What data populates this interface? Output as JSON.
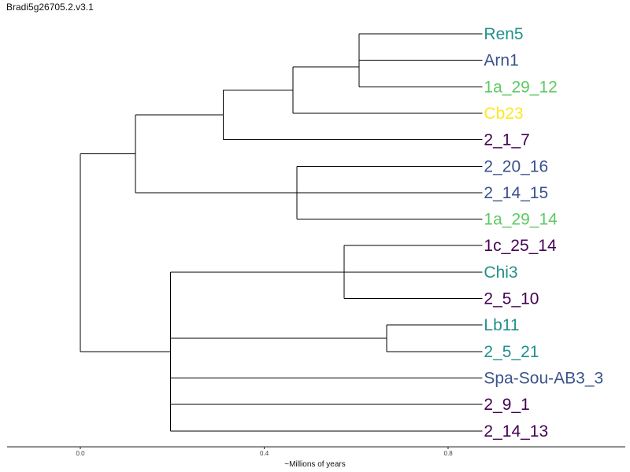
{
  "title": "Bradi5g26705.2.v3.1",
  "colors": {
    "dark_purple": "#440154",
    "blue": "#3b528b",
    "teal": "#21918c",
    "green": "#5ec962",
    "yellow": "#fde725"
  },
  "tree": {
    "axis_label": "~Millions of years",
    "ticks": [
      0.0,
      0.4,
      0.8
    ],
    "tick_labels": [
      "0.0",
      "0.4",
      "0.8"
    ],
    "leaves": [
      {
        "name": "Ren5",
        "color": "#21918c"
      },
      {
        "name": "Arn1",
        "color": "#3b528b"
      },
      {
        "name": "1a_29_12",
        "color": "#5ec962"
      },
      {
        "name": "Cb23",
        "color": "#fde725"
      },
      {
        "name": "2_1_7",
        "color": "#440154"
      },
      {
        "name": "2_20_16",
        "color": "#3b528b"
      },
      {
        "name": "2_14_15",
        "color": "#3b528b"
      },
      {
        "name": "1a_29_14",
        "color": "#5ec962"
      },
      {
        "name": "1c_25_14",
        "color": "#440154"
      },
      {
        "name": "Chi3",
        "color": "#21918c"
      },
      {
        "name": "2_5_10",
        "color": "#440154"
      },
      {
        "name": "Lb11",
        "color": "#21918c"
      },
      {
        "name": "2_5_21",
        "color": "#21918c"
      },
      {
        "name": "Spa-Sou-AB3_3",
        "color": "#3b528b"
      },
      {
        "name": "2_9_1",
        "color": "#440154"
      },
      {
        "name": "2_14_13",
        "color": "#440154"
      }
    ],
    "nodes": [
      {
        "id": "n_ren_arn",
        "x": 0.606,
        "children": [
          "Ren5",
          "Arn1"
        ]
      },
      {
        "id": "n_ra_1a",
        "x": 0.606,
        "children": [
          "n_ren_arn",
          "1a_29_12"
        ]
      },
      {
        "id": "n_cb",
        "x": 0.462,
        "children": [
          "n_ra_1a",
          "Cb23"
        ]
      },
      {
        "id": "n_217",
        "x": 0.311,
        "children": [
          "n_cb",
          "2_1_7"
        ]
      },
      {
        "id": "n_2016",
        "x": 0.471,
        "children": [
          "2_20_16",
          "2_14_15",
          "1a_29_14"
        ]
      },
      {
        "id": "n_upper",
        "x": 0.12,
        "children": [
          "n_217",
          "n_2016"
        ]
      },
      {
        "id": "n_1c",
        "x": 0.574,
        "children": [
          "1c_25_14",
          "Chi3",
          "2_5_10"
        ]
      },
      {
        "id": "n_lb",
        "x": 0.666,
        "children": [
          "Lb11",
          "2_5_21"
        ]
      },
      {
        "id": "n_lower",
        "x": 0.196,
        "children": [
          "n_1c",
          "n_lb",
          "Spa-Sou-AB3_3",
          "2_9_1",
          "2_14_13"
        ]
      },
      {
        "id": "root",
        "x": 0.0,
        "children": [
          "n_upper",
          "n_lower"
        ]
      }
    ],
    "leaf_x": 0.874
  }
}
